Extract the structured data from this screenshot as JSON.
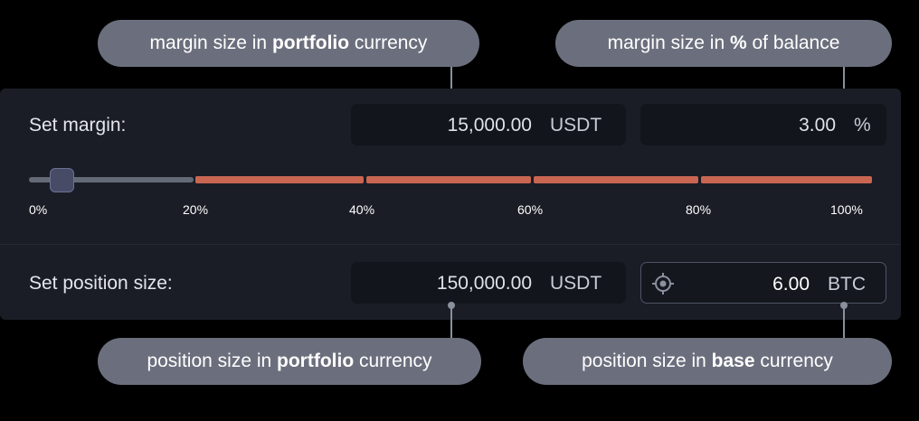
{
  "callouts": {
    "margin_portfolio": {
      "pre": "margin size in ",
      "bold": "portfolio",
      "post": " currency"
    },
    "margin_percent": {
      "pre": "margin size in ",
      "bold": "%",
      "post": " of balance"
    },
    "position_portfolio": {
      "pre": "position size in ",
      "bold": "portfolio",
      "post": " currency"
    },
    "position_base": {
      "pre": "position size in ",
      "bold": "base",
      "post": " currency"
    }
  },
  "margin": {
    "label": "Set margin:",
    "amount": "15,000.00",
    "amount_unit": "USDT",
    "percent": "3.00",
    "percent_unit": "%"
  },
  "slider": {
    "value_fraction": 0.03,
    "ticks": [
      "0%",
      "20%",
      "40%",
      "60%",
      "80%",
      "100%"
    ]
  },
  "position": {
    "label": "Set position size:",
    "amount": "150,000.00",
    "amount_unit": "USDT",
    "base_amount": "6.00",
    "base_unit": "BTC",
    "icon": "crosshair-icon"
  },
  "colors": {
    "panel": "#1a1d26",
    "field": "#13151c",
    "accent_segment": "#c96652",
    "callout": "#6b6f7d"
  }
}
